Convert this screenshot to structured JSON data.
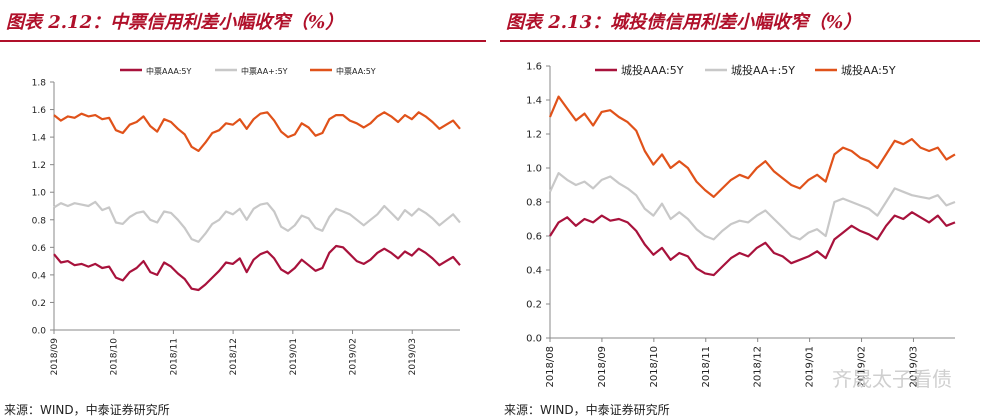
{
  "colors": {
    "aaa": "#a8123c",
    "aa_plus": "#c8c8c8",
    "aa": "#e0521a",
    "title": "#b0102a"
  },
  "watermark": "齐晟太子看债",
  "chart_data": [
    {
      "type": "line",
      "figure_label": "图表 2.12：中票信用利差小幅收窄（%）",
      "source": "来源：WIND，中泰证券研究所",
      "ylim": [
        0.0,
        1.8
      ],
      "yticks": [
        "0.0",
        "0.2",
        "0.4",
        "0.6",
        "0.8",
        "1.0",
        "1.2",
        "1.4",
        "1.6",
        "1.8"
      ],
      "xticks": [
        "2018/09",
        "2018/10",
        "2018/11",
        "2018/12",
        "2019/01",
        "2019/02",
        "2019/03"
      ],
      "xlabel": "",
      "ylabel": "",
      "legend_position": "top-center",
      "series": [
        {
          "name": "中票AAA:5Y",
          "color_key": "aaa",
          "values": [
            0.55,
            0.49,
            0.5,
            0.47,
            0.48,
            0.46,
            0.48,
            0.45,
            0.46,
            0.38,
            0.36,
            0.42,
            0.45,
            0.5,
            0.42,
            0.4,
            0.49,
            0.46,
            0.41,
            0.37,
            0.3,
            0.29,
            0.33,
            0.38,
            0.43,
            0.49,
            0.48,
            0.52,
            0.42,
            0.51,
            0.55,
            0.57,
            0.52,
            0.44,
            0.41,
            0.45,
            0.51,
            0.47,
            0.43,
            0.45,
            0.56,
            0.61,
            0.6,
            0.55,
            0.5,
            0.48,
            0.51,
            0.56,
            0.59,
            0.56,
            0.52,
            0.57,
            0.54,
            0.59,
            0.56,
            0.52,
            0.47,
            0.5,
            0.53,
            0.47
          ]
        },
        {
          "name": "中票AA+:5Y",
          "color_key": "aa_plus",
          "values": [
            0.89,
            0.92,
            0.9,
            0.92,
            0.91,
            0.9,
            0.93,
            0.87,
            0.89,
            0.78,
            0.77,
            0.82,
            0.85,
            0.86,
            0.8,
            0.78,
            0.86,
            0.85,
            0.8,
            0.74,
            0.66,
            0.64,
            0.7,
            0.77,
            0.8,
            0.86,
            0.84,
            0.88,
            0.8,
            0.88,
            0.91,
            0.92,
            0.86,
            0.75,
            0.72,
            0.76,
            0.83,
            0.81,
            0.74,
            0.72,
            0.82,
            0.88,
            0.86,
            0.84,
            0.8,
            0.76,
            0.8,
            0.84,
            0.9,
            0.85,
            0.8,
            0.87,
            0.83,
            0.88,
            0.85,
            0.81,
            0.76,
            0.8,
            0.84,
            0.78
          ]
        },
        {
          "name": "中票AA:5Y",
          "color_key": "aa",
          "values": [
            1.56,
            1.52,
            1.55,
            1.54,
            1.57,
            1.55,
            1.56,
            1.53,
            1.54,
            1.45,
            1.43,
            1.49,
            1.51,
            1.55,
            1.48,
            1.44,
            1.53,
            1.51,
            1.46,
            1.42,
            1.33,
            1.3,
            1.36,
            1.43,
            1.45,
            1.5,
            1.49,
            1.53,
            1.46,
            1.53,
            1.57,
            1.58,
            1.52,
            1.44,
            1.4,
            1.42,
            1.5,
            1.47,
            1.41,
            1.43,
            1.53,
            1.56,
            1.56,
            1.52,
            1.5,
            1.47,
            1.5,
            1.55,
            1.58,
            1.55,
            1.51,
            1.56,
            1.53,
            1.58,
            1.55,
            1.51,
            1.46,
            1.49,
            1.52,
            1.46
          ]
        }
      ]
    },
    {
      "type": "line",
      "figure_label": "图表 2.13：城投债信用利差小幅收窄（%）",
      "source": "来源：WIND，中泰证券研究所",
      "ylim": [
        0.0,
        1.6
      ],
      "yticks": [
        "0.0",
        "0.2",
        "0.4",
        "0.6",
        "0.8",
        "1.0",
        "1.2",
        "1.4",
        "1.6"
      ],
      "xticks": [
        "2018/08",
        "2018/09",
        "2018/10",
        "2018/11",
        "2018/12",
        "2019/01",
        "2019/02",
        "2019/03"
      ],
      "xlabel": "",
      "ylabel": "",
      "legend_position": "top-center",
      "series": [
        {
          "name": "城投AAA:5Y",
          "color_key": "aaa",
          "values": [
            0.6,
            0.68,
            0.71,
            0.66,
            0.7,
            0.68,
            0.72,
            0.69,
            0.7,
            0.68,
            0.63,
            0.55,
            0.49,
            0.53,
            0.46,
            0.5,
            0.48,
            0.41,
            0.38,
            0.37,
            0.42,
            0.47,
            0.5,
            0.48,
            0.53,
            0.56,
            0.5,
            0.48,
            0.44,
            0.46,
            0.48,
            0.51,
            0.47,
            0.58,
            0.62,
            0.66,
            0.63,
            0.61,
            0.58,
            0.66,
            0.72,
            0.7,
            0.74,
            0.71,
            0.68,
            0.72,
            0.66,
            0.68
          ]
        },
        {
          "name": "城投AA+:5Y",
          "color_key": "aa_plus",
          "values": [
            0.86,
            0.97,
            0.93,
            0.9,
            0.92,
            0.88,
            0.93,
            0.95,
            0.91,
            0.88,
            0.84,
            0.76,
            0.72,
            0.79,
            0.7,
            0.74,
            0.7,
            0.64,
            0.6,
            0.58,
            0.63,
            0.67,
            0.69,
            0.68,
            0.72,
            0.75,
            0.7,
            0.65,
            0.6,
            0.58,
            0.62,
            0.64,
            0.6,
            0.8,
            0.82,
            0.8,
            0.78,
            0.76,
            0.72,
            0.8,
            0.88,
            0.86,
            0.84,
            0.83,
            0.82,
            0.84,
            0.78,
            0.8
          ]
        },
        {
          "name": "城投AA:5Y",
          "color_key": "aa",
          "values": [
            1.3,
            1.42,
            1.35,
            1.28,
            1.32,
            1.25,
            1.33,
            1.34,
            1.3,
            1.27,
            1.22,
            1.1,
            1.02,
            1.08,
            1.0,
            1.04,
            1.0,
            0.92,
            0.87,
            0.83,
            0.88,
            0.93,
            0.96,
            0.94,
            1.0,
            1.04,
            0.98,
            0.94,
            0.9,
            0.88,
            0.93,
            0.96,
            0.92,
            1.08,
            1.12,
            1.1,
            1.06,
            1.04,
            1.0,
            1.08,
            1.16,
            1.14,
            1.17,
            1.12,
            1.1,
            1.12,
            1.05,
            1.08
          ]
        }
      ]
    }
  ]
}
